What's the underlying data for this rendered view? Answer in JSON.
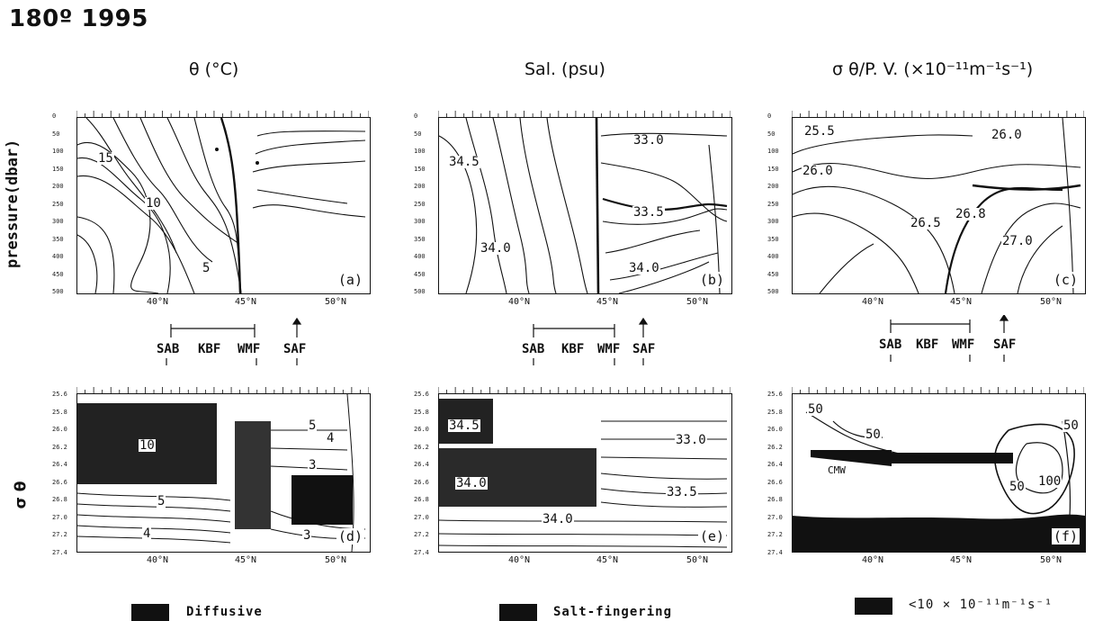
{
  "header": {
    "title": "180º 1995"
  },
  "columns": {
    "temp_title": "θ (°C)",
    "sal_title": "Sal. (psu)",
    "pv_title": "σ θ/P. V. (×10⁻¹¹m⁻¹s⁻¹)"
  },
  "axes": {
    "pressure_label": "pressure(dbar)",
    "sigma_label": "σ θ",
    "pressure_ticks": [
      "0",
      "50",
      "100",
      "150",
      "200",
      "250",
      "300",
      "350",
      "400",
      "450",
      "500"
    ],
    "sigma_ticks": [
      "25.6",
      "25.8",
      "26.0",
      "26.2",
      "26.4",
      "26.6",
      "26.8",
      "27.0",
      "27.2",
      "27.4"
    ],
    "lat_ticks": [
      "40°N",
      "45°N",
      "50°N"
    ]
  },
  "fronts": {
    "sab": "SAB",
    "kbf": "KBF",
    "wmf": "WMF",
    "saf": "SAF"
  },
  "panels": {
    "a": {
      "label": "(a)",
      "contours": [
        "15",
        "10",
        "5"
      ]
    },
    "b": {
      "label": "(b)",
      "contours": [
        "34.5",
        "33.0",
        "33.5",
        "34.0",
        "34.0"
      ]
    },
    "c": {
      "label": "(c)",
      "contours": [
        "25.5",
        "26.0",
        "26.0",
        "26.5",
        "26.8",
        "27.0"
      ]
    },
    "d": {
      "label": "(d)",
      "contours": [
        "10",
        "5",
        "4",
        "5",
        "4",
        "3",
        "3"
      ]
    },
    "e": {
      "label": "(e)",
      "contours": [
        "34.5",
        "33.0",
        "34.0",
        "33.5",
        "34.0"
      ]
    },
    "f": {
      "label": "(f)",
      "contours": [
        "50",
        "50",
        "50",
        "50",
        "100",
        "CMW"
      ]
    }
  },
  "legend": {
    "diffusive": "Diffusive",
    "salt": "Salt-fingering",
    "pv": "<10 × 10⁻¹¹m⁻¹s⁻¹"
  }
}
